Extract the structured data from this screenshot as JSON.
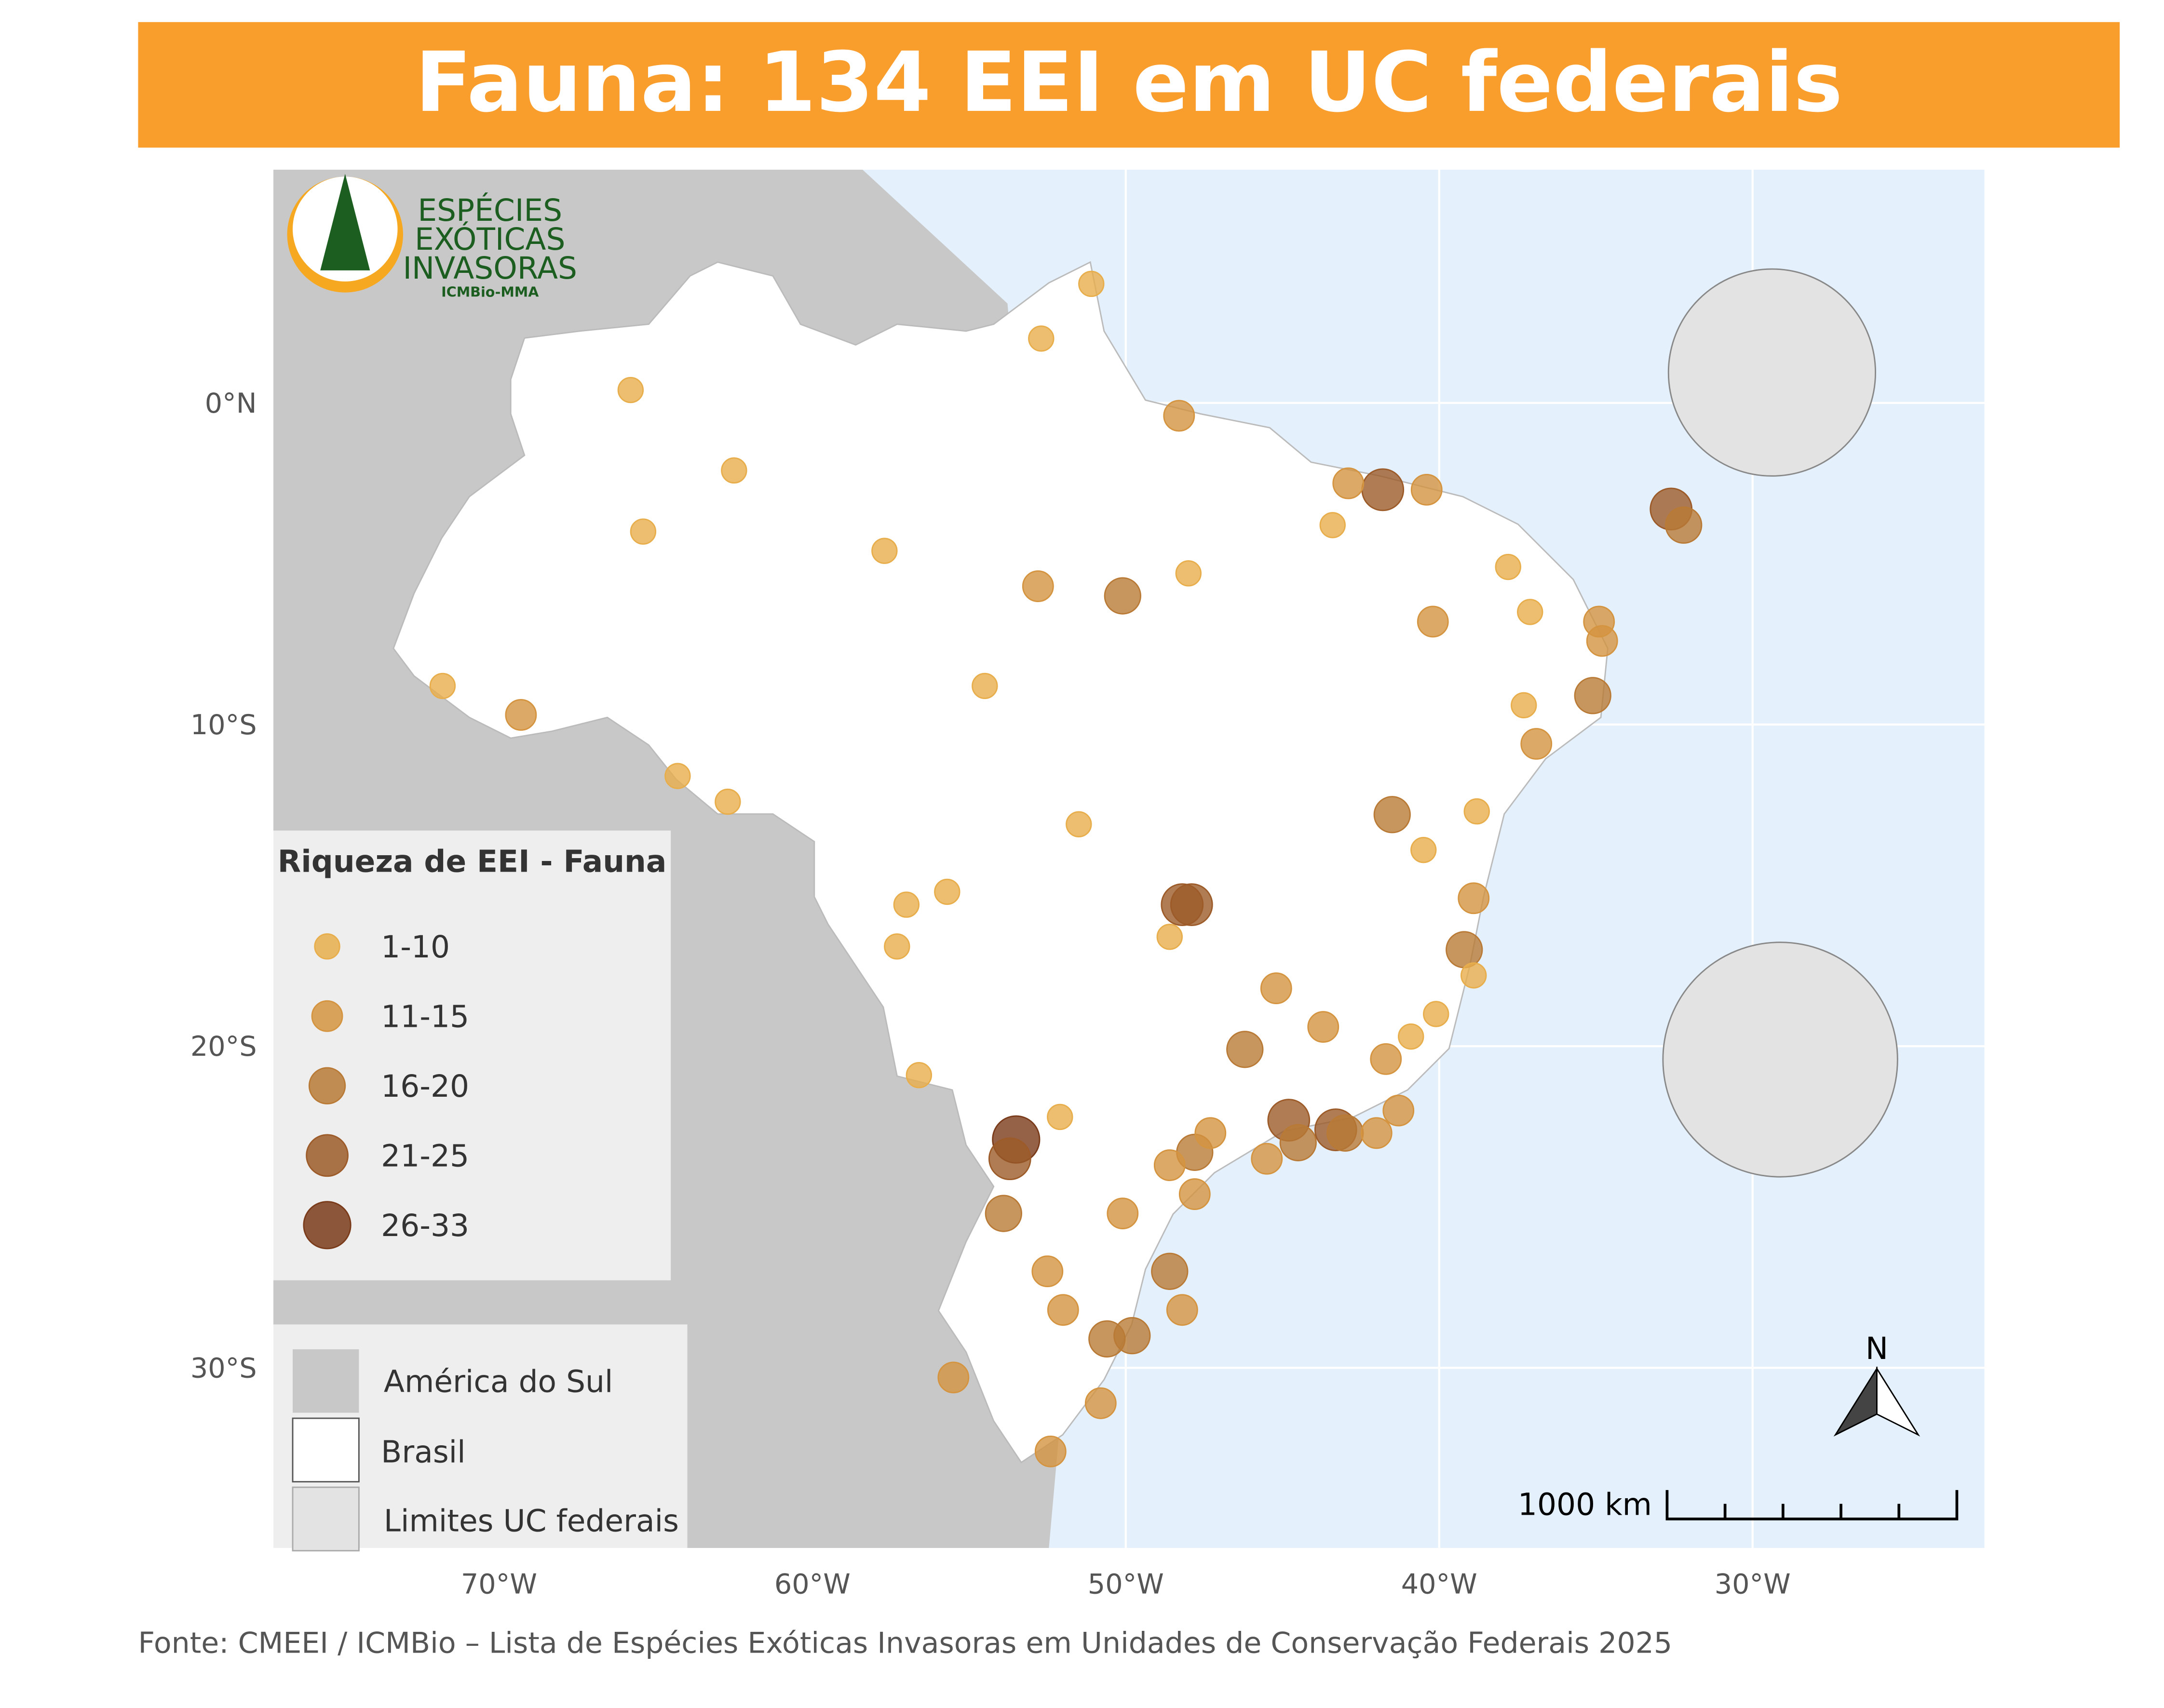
{
  "title": "Fauna: 134 EEI em UC federais",
  "logo": {
    "line1": "ESPÉCIES",
    "line2": "EXÓTICAS",
    "line3": "INVASORAS",
    "org": "ICMBio-MMA"
  },
  "map": {
    "xlim": [
      -77.2,
      -22.6
    ],
    "ylim": [
      -35.6,
      7.25
    ],
    "xticks": [
      {
        "value": -70,
        "label": "70°W"
      },
      {
        "value": -60,
        "label": "60°W"
      },
      {
        "value": -50,
        "label": "50°W"
      },
      {
        "value": -40,
        "label": "40°W"
      },
      {
        "value": -30,
        "label": "30°W"
      }
    ],
    "yticks": [
      {
        "value": 0,
        "label": "0°N"
      },
      {
        "value": -10,
        "label": "10°S"
      },
      {
        "value": -20,
        "label": "20°S"
      },
      {
        "value": -30,
        "label": "30°S"
      }
    ],
    "classes": [
      {
        "label": "1-10",
        "color": "#e8ae4c"
      },
      {
        "label": "11-15",
        "color": "#d49440"
      },
      {
        "label": "16-20",
        "color": "#b97a36"
      },
      {
        "label": "21-25",
        "color": "#9c5b28"
      },
      {
        "label": "26-33",
        "color": "#7a3b1a"
      }
    ],
    "points": [
      {
        "lon": -51.1,
        "lat": 3.7,
        "class": 0
      },
      {
        "lon": -52.7,
        "lat": 2.0,
        "class": 0
      },
      {
        "lon": -48.3,
        "lat": -0.4,
        "class": 1
      },
      {
        "lon": -41.8,
        "lat": -2.7,
        "class": 3
      },
      {
        "lon": -40.4,
        "lat": -2.7,
        "class": 1
      },
      {
        "lon": -32.6,
        "lat": -3.3,
        "class": 3
      },
      {
        "lon": -32.2,
        "lat": -3.8,
        "class": 2
      },
      {
        "lon": -50.1,
        "lat": -6.0,
        "class": 2
      },
      {
        "lon": -62.5,
        "lat": -2.1,
        "class": 0
      },
      {
        "lon": -34.9,
        "lat": -6.8,
        "class": 1
      },
      {
        "lon": -34.8,
        "lat": -7.4,
        "class": 1
      },
      {
        "lon": -35.1,
        "lat": -9.1,
        "class": 2
      },
      {
        "lon": -37.1,
        "lat": -6.5,
        "class": 0
      },
      {
        "lon": -41.5,
        "lat": -12.8,
        "class": 2
      },
      {
        "lon": -48.2,
        "lat": -15.6,
        "class": 3
      },
      {
        "lon": -47.9,
        "lat": -15.6,
        "class": 3
      },
      {
        "lon": -57.0,
        "lat": -15.6,
        "class": 0
      },
      {
        "lon": -55.7,
        "lat": -15.2,
        "class": 0
      },
      {
        "lon": -38.9,
        "lat": -15.4,
        "class": 1
      },
      {
        "lon": -39.2,
        "lat": -17.0,
        "class": 2
      },
      {
        "lon": -45.2,
        "lat": -18.2,
        "class": 1
      },
      {
        "lon": -43.7,
        "lat": -19.4,
        "class": 1
      },
      {
        "lon": -40.1,
        "lat": -19.0,
        "class": 0
      },
      {
        "lon": -46.2,
        "lat": -20.1,
        "class": 2
      },
      {
        "lon": -41.7,
        "lat": -20.4,
        "class": 1
      },
      {
        "lon": -53.5,
        "lat": -22.9,
        "class": 4
      },
      {
        "lon": -53.7,
        "lat": -23.5,
        "class": 3
      },
      {
        "lon": -53.9,
        "lat": -25.2,
        "class": 2
      },
      {
        "lon": -44.8,
        "lat": -22.3,
        "class": 3
      },
      {
        "lon": -44.5,
        "lat": -23.0,
        "class": 2
      },
      {
        "lon": -43.3,
        "lat": -22.6,
        "class": 3
      },
      {
        "lon": -43.0,
        "lat": -22.7,
        "class": 2
      },
      {
        "lon": -42.0,
        "lat": -22.7,
        "class": 1
      },
      {
        "lon": -41.3,
        "lat": -22.0,
        "class": 1
      },
      {
        "lon": -47.8,
        "lat": -23.3,
        "class": 2
      },
      {
        "lon": -47.3,
        "lat": -22.7,
        "class": 1
      },
      {
        "lon": -45.5,
        "lat": -23.5,
        "class": 1
      },
      {
        "lon": -48.6,
        "lat": -23.7,
        "class": 1
      },
      {
        "lon": -47.8,
        "lat": -24.6,
        "class": 1
      },
      {
        "lon": -50.1,
        "lat": -25.2,
        "class": 1
      },
      {
        "lon": -48.6,
        "lat": -27.0,
        "class": 2
      },
      {
        "lon": -48.2,
        "lat": -28.2,
        "class": 1
      },
      {
        "lon": -52.5,
        "lat": -27.0,
        "class": 1
      },
      {
        "lon": -52.0,
        "lat": -28.2,
        "class": 1
      },
      {
        "lon": -50.6,
        "lat": -29.1,
        "class": 2
      },
      {
        "lon": -49.8,
        "lat": -29.0,
        "class": 2
      },
      {
        "lon": -55.5,
        "lat": -30.3,
        "class": 1
      },
      {
        "lon": -50.8,
        "lat": -31.1,
        "class": 1
      },
      {
        "lon": -52.4,
        "lat": -32.6,
        "class": 1
      },
      {
        "lon": -52.1,
        "lat": -22.2,
        "class": 0
      },
      {
        "lon": -48.6,
        "lat": -16.6,
        "class": 0
      },
      {
        "lon": -51.5,
        "lat": -13.1,
        "class": 0
      },
      {
        "lon": -56.6,
        "lat": -20.9,
        "class": 0
      },
      {
        "lon": -57.3,
        "lat": -16.9,
        "class": 0
      },
      {
        "lon": -48.0,
        "lat": -5.3,
        "class": 0
      },
      {
        "lon": -37.8,
        "lat": -5.1,
        "class": 0
      },
      {
        "lon": -40.2,
        "lat": -6.8,
        "class": 1
      },
      {
        "lon": -37.3,
        "lat": -9.4,
        "class": 0
      },
      {
        "lon": -36.9,
        "lat": -10.6,
        "class": 1
      },
      {
        "lon": -43.4,
        "lat": -3.8,
        "class": 0
      },
      {
        "lon": -42.9,
        "lat": -2.5,
        "class": 1
      },
      {
        "lon": -52.8,
        "lat": -5.7,
        "class": 1
      },
      {
        "lon": -57.7,
        "lat": -4.6,
        "class": 0
      },
      {
        "lon": -71.8,
        "lat": -8.8,
        "class": 0
      },
      {
        "lon": -69.3,
        "lat": -9.7,
        "class": 1
      },
      {
        "lon": -64.3,
        "lat": -11.6,
        "class": 0
      },
      {
        "lon": -62.7,
        "lat": -12.4,
        "class": 0
      },
      {
        "lon": -65.4,
        "lat": -4.0,
        "class": 0
      },
      {
        "lon": -65.8,
        "lat": 0.4,
        "class": 0
      },
      {
        "lon": -54.5,
        "lat": -8.8,
        "class": 0
      },
      {
        "lon": -38.8,
        "lat": -12.7,
        "class": 0
      },
      {
        "lon": -40.5,
        "lat": -13.9,
        "class": 0
      },
      {
        "lon": -40.9,
        "lat": -19.7,
        "class": 0
      },
      {
        "lon": -38.9,
        "lat": -17.8,
        "class": 0
      }
    ]
  },
  "legend": {
    "title": "Riqueza de EEI - Fauna"
  },
  "legend2": {
    "items": [
      "América do Sul",
      "Brasil",
      "Limites UC federais"
    ]
  },
  "scale": "1000 km",
  "north": "N",
  "source": "Fonte: CMEEI / ICMBio – Lista de Espécies Exóticas Invasoras em Unidades de Conservação Federais 2025"
}
